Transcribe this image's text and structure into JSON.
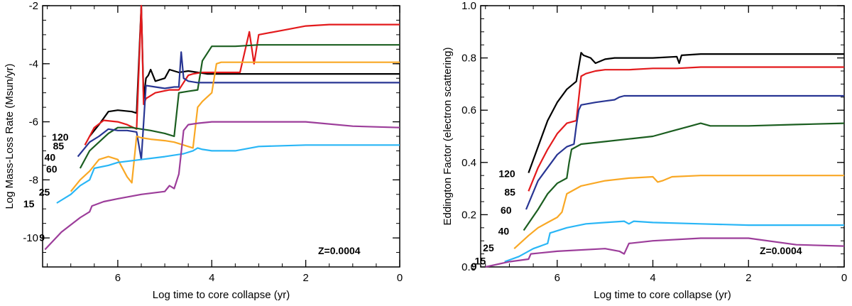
{
  "chart_data": [
    {
      "type": "line",
      "xlabel": "Log time to core collapse (yr)",
      "ylabel": "Log Mass-Loss Rate (Msun/yr)",
      "xlim": [
        7.6,
        0
      ],
      "ylim": [
        -11,
        -2
      ],
      "xticks": [
        6,
        4,
        2,
        0
      ],
      "xtick_labels": [
        "6",
        "4",
        "2",
        "0"
      ],
      "yticks": [
        -10,
        -8,
        -6,
        -4,
        -2
      ],
      "ytick_labels": [
        "-10",
        "-8",
        "-6",
        "-4",
        "-2"
      ],
      "annotation": "Z=0.0004",
      "series": [
        {
          "name": "120",
          "color": "#000000",
          "x": [
            6.6,
            6.4,
            6.2,
            6.0,
            5.7,
            5.6,
            5.5,
            5.45,
            5.4,
            5.35,
            5.3,
            5.2,
            5.0,
            4.9,
            4.7,
            4.5,
            4.3,
            4.1,
            3.5,
            3.0,
            2.0,
            0.0
          ],
          "y": [
            -6.5,
            -6.1,
            -5.65,
            -5.6,
            -5.65,
            -5.7,
            -2.0,
            -5.2,
            -4.5,
            -4.4,
            -4.2,
            -4.6,
            -4.5,
            -4.2,
            -4.3,
            -4.25,
            -4.3,
            -4.35,
            -4.35,
            -4.35,
            -4.35,
            -4.35
          ]
        },
        {
          "name": "85",
          "color": "#e31a1c",
          "x": [
            6.7,
            6.5,
            6.3,
            6.0,
            5.8,
            5.6,
            5.5,
            5.45,
            5.4,
            5.2,
            4.9,
            4.7,
            4.5,
            4.4,
            4.2,
            4.0,
            3.7,
            3.4,
            3.2,
            3.1,
            3.0,
            2.5,
            2.0,
            1.5,
            0.0
          ],
          "y": [
            -6.8,
            -6.2,
            -5.95,
            -6.0,
            -6.1,
            -6.25,
            -2.0,
            -5.4,
            -5.2,
            -5.0,
            -4.9,
            -4.9,
            -4.4,
            -4.35,
            -4.3,
            -4.3,
            -4.3,
            -4.3,
            -2.9,
            -4.0,
            -3.0,
            -2.85,
            -2.7,
            -2.65,
            -2.65
          ]
        },
        {
          "name": "60",
          "color": "#1b5e20",
          "x": [
            6.8,
            6.6,
            6.4,
            6.2,
            6.0,
            5.7,
            5.5,
            5.3,
            5.0,
            4.8,
            4.7,
            4.5,
            4.3,
            4.2,
            4.0,
            3.5,
            3.0,
            2.0,
            0.0
          ],
          "y": [
            -7.6,
            -7.0,
            -6.7,
            -6.4,
            -6.2,
            -6.2,
            -6.25,
            -6.3,
            -6.4,
            -6.5,
            -5.0,
            -4.95,
            -4.9,
            -3.9,
            -3.4,
            -3.4,
            -3.35,
            -3.35,
            -3.35
          ]
        },
        {
          "name": "40",
          "color": "#283593",
          "x": [
            6.85,
            6.6,
            6.4,
            6.2,
            6.0,
            5.8,
            5.6,
            5.5,
            5.4,
            5.2,
            5.0,
            4.8,
            4.7,
            4.65,
            4.6,
            4.5,
            4.3,
            4.0,
            3.5,
            3.0,
            2.0,
            0.0
          ],
          "y": [
            -7.2,
            -6.7,
            -6.5,
            -6.25,
            -6.3,
            -6.3,
            -6.35,
            -7.3,
            -4.75,
            -4.8,
            -4.85,
            -4.8,
            -4.8,
            -3.6,
            -4.5,
            -4.6,
            -4.65,
            -4.65,
            -4.65,
            -4.65,
            -4.65,
            -4.65
          ]
        },
        {
          "name": "25",
          "color": "#f9a825",
          "x": [
            7.0,
            6.8,
            6.6,
            6.4,
            6.2,
            6.0,
            5.8,
            5.7,
            5.6,
            5.5,
            5.3,
            5.0,
            4.8,
            4.6,
            4.4,
            4.3,
            4.2,
            4.0,
            3.9,
            3.8,
            3.5,
            3.0,
            2.0,
            0.0
          ],
          "y": [
            -8.4,
            -8.0,
            -7.7,
            -7.3,
            -7.2,
            -7.3,
            -7.9,
            -8.1,
            -6.5,
            -6.55,
            -6.6,
            -6.65,
            -6.7,
            -6.8,
            -6.9,
            -5.5,
            -5.3,
            -5.0,
            -4.0,
            -3.95,
            -3.95,
            -3.95,
            -3.95,
            -3.95
          ]
        },
        {
          "name": "15",
          "color": "#29b6f6",
          "x": [
            7.3,
            7.0,
            6.8,
            6.6,
            6.5,
            6.2,
            6.0,
            5.5,
            5.0,
            4.6,
            4.4,
            4.3,
            4.2,
            4.0,
            3.5,
            3.0,
            2.0,
            1.0,
            0.0
          ],
          "y": [
            -8.8,
            -8.5,
            -8.2,
            -8.0,
            -7.6,
            -7.5,
            -7.4,
            -7.3,
            -7.2,
            -7.1,
            -7.0,
            -6.9,
            -6.95,
            -7.0,
            -7.0,
            -6.85,
            -6.8,
            -6.8,
            -6.8
          ]
        },
        {
          "name": "9",
          "color": "#9c3d9a",
          "x": [
            7.55,
            7.2,
            6.8,
            6.6,
            6.55,
            6.3,
            6.0,
            5.5,
            5.0,
            4.9,
            4.8,
            4.7,
            4.6,
            4.5,
            4.3,
            4.0,
            3.5,
            3.0,
            2.0,
            1.0,
            0.0
          ],
          "y": [
            -10.4,
            -9.8,
            -9.3,
            -9.1,
            -8.9,
            -8.75,
            -8.65,
            -8.5,
            -8.4,
            -8.2,
            -8.3,
            -7.8,
            -6.3,
            -6.1,
            -6.05,
            -6.0,
            -6.0,
            -6.0,
            -6.0,
            -6.15,
            -6.2
          ]
        }
      ]
    },
    {
      "type": "line",
      "xlabel": "Log time to core collapse (yr)",
      "ylabel": "Eddington Factor (electron scattering)",
      "xlim": [
        7.6,
        0
      ],
      "ylim": [
        0,
        1.0
      ],
      "xticks": [
        6,
        4,
        2,
        0
      ],
      "xtick_labels": [
        "6",
        "4",
        "2",
        "0"
      ],
      "yticks": [
        0.0,
        0.2,
        0.4,
        0.6,
        0.8,
        1.0
      ],
      "ytick_labels": [
        "0.0",
        "0.2",
        "0.4",
        "0.6",
        "0.8",
        "1.0"
      ],
      "annotation": "Z=0.0004",
      "series": [
        {
          "name": "120",
          "color": "#000000",
          "x": [
            6.6,
            6.4,
            6.2,
            6.0,
            5.8,
            5.6,
            5.5,
            5.45,
            5.3,
            5.2,
            5.0,
            4.8,
            4.5,
            4.0,
            3.5,
            3.45,
            3.4,
            3.0,
            2.0,
            1.0,
            0.0
          ],
          "y": [
            0.36,
            0.46,
            0.56,
            0.63,
            0.68,
            0.71,
            0.82,
            0.81,
            0.8,
            0.78,
            0.795,
            0.8,
            0.8,
            0.8,
            0.805,
            0.78,
            0.81,
            0.815,
            0.815,
            0.815,
            0.815
          ]
        },
        {
          "name": "85",
          "color": "#e31a1c",
          "x": [
            6.6,
            6.4,
            6.2,
            6.0,
            5.8,
            5.6,
            5.5,
            5.4,
            5.2,
            5.0,
            4.5,
            4.0,
            3.5,
            3.0,
            2.0,
            1.0,
            0.0
          ],
          "y": [
            0.29,
            0.38,
            0.45,
            0.51,
            0.55,
            0.56,
            0.73,
            0.74,
            0.75,
            0.755,
            0.755,
            0.76,
            0.76,
            0.765,
            0.765,
            0.765,
            0.765
          ]
        },
        {
          "name": "60",
          "color": "#283593",
          "x": [
            6.65,
            6.4,
            6.2,
            6.0,
            5.8,
            5.65,
            5.6,
            5.55,
            5.5,
            5.2,
            5.0,
            4.8,
            4.7,
            4.6,
            4.5,
            4.0,
            3.0,
            2.0,
            1.0,
            0.0
          ],
          "y": [
            0.22,
            0.33,
            0.38,
            0.43,
            0.46,
            0.47,
            0.54,
            0.6,
            0.62,
            0.63,
            0.635,
            0.64,
            0.65,
            0.655,
            0.655,
            0.655,
            0.655,
            0.655,
            0.655,
            0.655
          ]
        },
        {
          "name": "40",
          "color": "#1b5e20",
          "x": [
            6.7,
            6.4,
            6.2,
            6.0,
            5.8,
            5.75,
            5.7,
            5.5,
            5.0,
            4.5,
            4.0,
            3.6,
            3.2,
            3.0,
            2.8,
            2.0,
            1.0,
            0.0
          ],
          "y": [
            0.14,
            0.22,
            0.28,
            0.32,
            0.34,
            0.4,
            0.45,
            0.47,
            0.48,
            0.49,
            0.5,
            0.52,
            0.54,
            0.55,
            0.54,
            0.54,
            0.545,
            0.55
          ]
        },
        {
          "name": "25",
          "color": "#f9a825",
          "x": [
            6.9,
            6.6,
            6.4,
            6.2,
            6.0,
            5.9,
            5.8,
            5.5,
            5.0,
            4.5,
            4.0,
            3.9,
            3.8,
            3.6,
            3.0,
            2.0,
            1.0,
            0.0
          ],
          "y": [
            0.07,
            0.12,
            0.15,
            0.17,
            0.19,
            0.21,
            0.28,
            0.31,
            0.33,
            0.34,
            0.345,
            0.325,
            0.33,
            0.345,
            0.35,
            0.35,
            0.35,
            0.35
          ]
        },
        {
          "name": "15",
          "color": "#29b6f6",
          "x": [
            7.1,
            6.8,
            6.5,
            6.2,
            6.15,
            5.8,
            5.4,
            5.0,
            4.6,
            4.5,
            4.4,
            4.0,
            3.0,
            2.0,
            1.0,
            0.0
          ],
          "y": [
            0.02,
            0.04,
            0.07,
            0.09,
            0.13,
            0.15,
            0.165,
            0.17,
            0.175,
            0.165,
            0.175,
            0.17,
            0.165,
            0.16,
            0.16,
            0.16
          ]
        },
        {
          "name": "9",
          "color": "#9c3d9a",
          "x": [
            7.5,
            7.0,
            6.6,
            6.55,
            6.0,
            5.0,
            4.7,
            4.6,
            4.5,
            4.0,
            3.0,
            2.0,
            1.0,
            0.0
          ],
          "y": [
            0.0,
            0.02,
            0.03,
            0.05,
            0.06,
            0.07,
            0.06,
            0.05,
            0.09,
            0.1,
            0.11,
            0.11,
            0.085,
            0.08
          ]
        }
      ]
    }
  ]
}
